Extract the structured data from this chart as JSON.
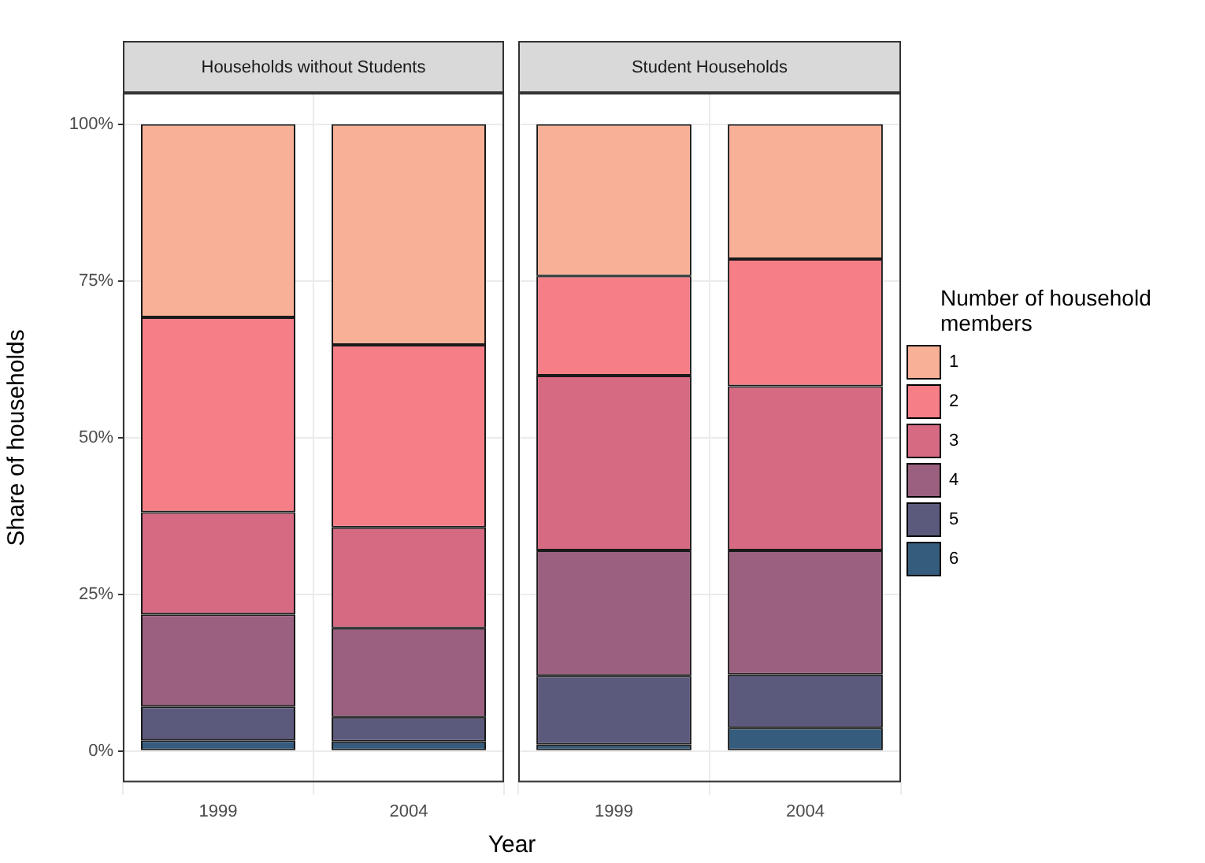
{
  "chart_data": [
    {
      "type": "bar",
      "title": "Households without Students",
      "xlabel": "Year",
      "ylabel": "Share of households",
      "categories": [
        "1999",
        "2004"
      ],
      "stacked": true,
      "ylim": [
        -5,
        105
      ],
      "yticks": [
        {
          "value": 0,
          "label": "0%"
        },
        {
          "value": 25,
          "label": "25%"
        },
        {
          "value": 50,
          "label": "50%"
        },
        {
          "value": 75,
          "label": "75%"
        },
        {
          "value": 100,
          "label": "100%"
        }
      ],
      "grid": true,
      "legend": false,
      "series": [
        {
          "color": "#355c7d",
          "values": [
            1.7,
            1.5
          ]
        },
        {
          "color": "#5c5a7c",
          "values": [
            5.4,
            3.9
          ]
        },
        {
          "color": "#9b5f7f",
          "values": [
            14.7,
            14.2
          ]
        },
        {
          "color": "#d56a82",
          "values": [
            16.3,
            16.1
          ]
        },
        {
          "color": "#f67e87",
          "values": [
            31.1,
            29.1
          ]
        },
        {
          "color": "#f8b196",
          "values": [
            30.8,
            35.2
          ]
        }
      ]
    },
    {
      "type": "bar",
      "title": "Student Households",
      "categories": [
        "1999",
        "2004"
      ],
      "stacked": true,
      "ylim": [
        -5,
        105
      ],
      "yticks": [
        {
          "value": 0,
          "label": null
        },
        {
          "value": 25,
          "label": null
        },
        {
          "value": 50,
          "label": null
        },
        {
          "value": 75,
          "label": null
        },
        {
          "value": 100,
          "label": null
        }
      ],
      "tick_labels": "x",
      "grid": true,
      "legend": "right",
      "legend_title": "Number of household members",
      "series": [
        {
          "name": "6",
          "color": "#355c7d",
          "values": [
            1.0,
            3.7
          ]
        },
        {
          "name": "5",
          "color": "#5c5a7c",
          "values": [
            11.0,
            8.5
          ]
        },
        {
          "name": "4",
          "color": "#9b5f7f",
          "values": [
            20.0,
            19.8
          ]
        },
        {
          "name": "3",
          "color": "#d56a82",
          "values": [
            27.9,
            26.2
          ]
        },
        {
          "name": "2",
          "color": "#f67e87",
          "values": [
            15.9,
            20.3
          ]
        },
        {
          "name": "1",
          "color": "#f8b196",
          "values": [
            24.2,
            21.5
          ]
        }
      ]
    }
  ]
}
